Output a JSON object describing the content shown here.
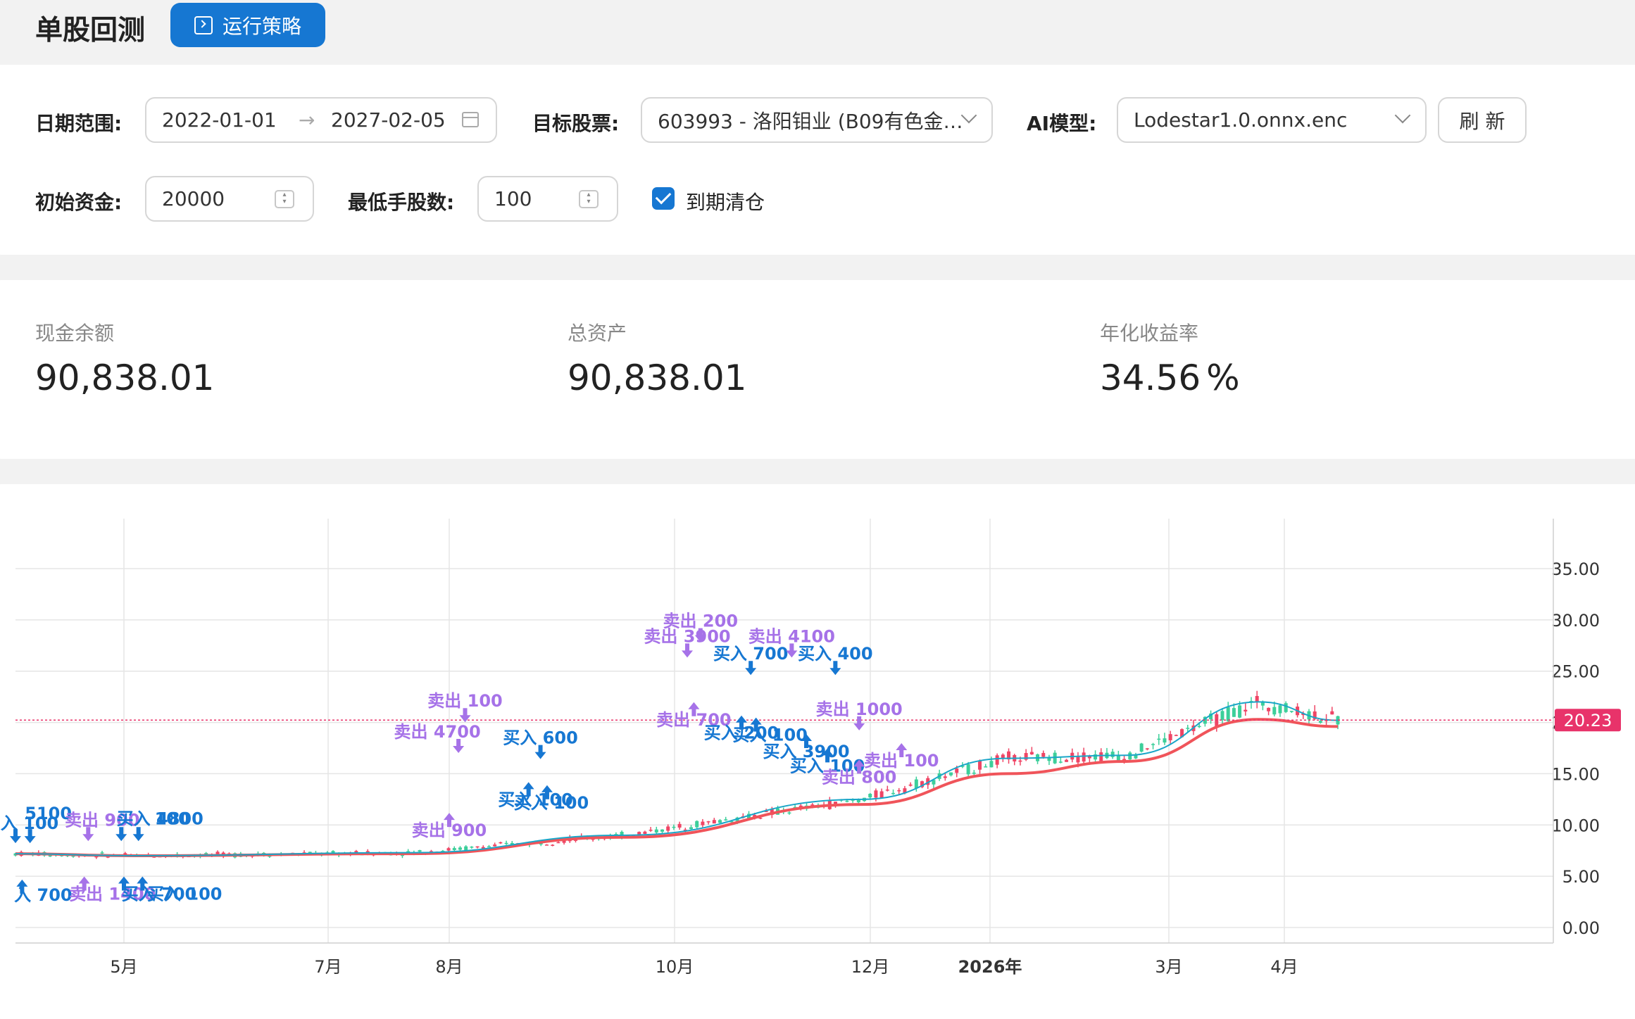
{
  "header": {
    "title": "单股回测",
    "run_button": "运行策略"
  },
  "form": {
    "date_range_label": "日期范围:",
    "date_start": "2022-01-01",
    "date_end": "2027-02-05",
    "date_separator": "→",
    "stock_label": "目标股票:",
    "stock_value": "603993 - 洛阳钼业 (B09有色金…",
    "model_label": "AI模型:",
    "model_value": "Lodestar1.0.onnx.enc",
    "refresh_button": "刷 新",
    "capital_label": "初始资金:",
    "capital_value": "20000",
    "lot_label": "最低手股数:",
    "lot_value": "100",
    "clear_label": "到期清仓",
    "clear_checked": true
  },
  "stats": [
    {
      "title": "现金余额",
      "value": "90,838.01"
    },
    {
      "title": "总资产",
      "value": "90,838.01"
    },
    {
      "title": "年化收益率",
      "value": "34.56",
      "unit": "%"
    }
  ],
  "chart_data": {
    "type": "line",
    "y_ticks": [
      "0.00",
      "5.00",
      "10.00",
      "15.00",
      "20.00",
      "25.00",
      "30.00",
      "35.00"
    ],
    "ylim": [
      0,
      35
    ],
    "x_ticks": [
      "5月",
      "7月",
      "8月",
      "10月",
      "12月",
      "2026年",
      "3月",
      "4月"
    ],
    "current_price": "20.23",
    "colors": {
      "up": "#ef4565",
      "down": "#3ccf9a",
      "fast_ma": "#1aa6c8",
      "slow_ma": "#f0545a",
      "buy": "#1677d2",
      "sell": "#a672e8",
      "price_line": "#e8336a"
    },
    "series": [
      {
        "x": [
          0,
          0.09,
          0.3,
          0.46,
          0.64,
          0.75,
          0.84,
          0.94,
          1.0
        ],
        "values": [
          7.2,
          7,
          7.3,
          9,
          12.5,
          16.5,
          16.8,
          22,
          20.2
        ]
      },
      {
        "x": [
          0,
          0.09,
          0.3,
          0.46,
          0.64,
          0.75,
          0.84,
          0.94,
          1.0
        ],
        "values": [
          7.2,
          7,
          7.2,
          8.8,
          12,
          15,
          16.2,
          20.3,
          19.6
        ]
      }
    ],
    "trades": [
      {
        "label": "入 100",
        "type": "buy"
      },
      {
        "label": "5100",
        "type": "buy"
      },
      {
        "label": "入 700",
        "type": "buy"
      },
      {
        "label": "卖出 900",
        "type": "sell"
      },
      {
        "label": "买入 4800",
        "type": "buy"
      },
      {
        "label": "100",
        "type": "buy"
      },
      {
        "label": "卖出 1400",
        "type": "sell"
      },
      {
        "label": "买入 700",
        "type": "buy"
      },
      {
        "label": "买入 100",
        "type": "buy"
      },
      {
        "label": "卖出 100",
        "type": "sell"
      },
      {
        "label": "卖出 4700",
        "type": "sell"
      },
      {
        "label": "卖出 900",
        "type": "sell"
      },
      {
        "label": "买入 600",
        "type": "buy"
      },
      {
        "label": "买入 100",
        "type": "buy"
      },
      {
        "label": "买入 100",
        "type": "buy"
      },
      {
        "label": "卖出 3900",
        "type": "sell"
      },
      {
        "label": "卖出 200",
        "type": "sell"
      },
      {
        "label": "卖出 700",
        "type": "sell"
      },
      {
        "label": "买入 700",
        "type": "buy"
      },
      {
        "label": "买入 200",
        "type": "buy"
      },
      {
        "label": "买入 100",
        "type": "buy"
      },
      {
        "label": "卖出 4100",
        "type": "sell"
      },
      {
        "label": "买入 400",
        "type": "buy"
      },
      {
        "label": "买入 3900",
        "type": "buy"
      },
      {
        "label": "买入 100",
        "type": "buy"
      },
      {
        "label": "卖出 1000",
        "type": "sell"
      },
      {
        "label": "卖出 800",
        "type": "sell"
      },
      {
        "label": "卖出 100",
        "type": "sell"
      }
    ]
  }
}
